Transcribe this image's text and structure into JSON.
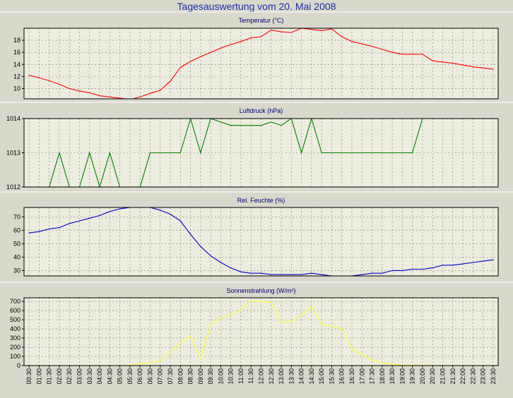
{
  "page_title": "Tagesauswertung vom 20. Mai 2008",
  "x_labels": [
    "00:30",
    "01:00",
    "01:30",
    "02:00",
    "02:30",
    "03:00",
    "03:30",
    "04:00",
    "04:30",
    "05:00",
    "05:30",
    "06:00",
    "06:30",
    "07:00",
    "07:30",
    "08:00",
    "08:30",
    "09:00",
    "09:30",
    "10:00",
    "10:30",
    "11:00",
    "11:30",
    "12:00",
    "12:30",
    "13:00",
    "13:30",
    "14:00",
    "14:30",
    "15:00",
    "15:30",
    "16:00",
    "16:30",
    "17:00",
    "17:30",
    "18:00",
    "18:30",
    "19:00",
    "19:30",
    "20:00",
    "20:30",
    "21:00",
    "21:30",
    "22:00",
    "22:30",
    "23:00",
    "23:30"
  ],
  "colors": {
    "background": "#d8d8cc",
    "plot_bg": "#ececdf",
    "grid": "#808080",
    "temperature": "#ff0000",
    "pressure": "#008000",
    "humidity": "#0000c8",
    "radiation": "#ffff33"
  },
  "chart_data": [
    {
      "type": "line",
      "title": "Temperatur (°C)",
      "ylim": [
        8.3,
        20
      ],
      "yticks": [
        10,
        12,
        14,
        16,
        18
      ],
      "grid": true,
      "series": [
        {
          "values": [
            12.2,
            11.8,
            11.3,
            10.7,
            10.0,
            9.6,
            9.3,
            8.8,
            8.6,
            8.4,
            8.2,
            8.6,
            9.2,
            9.7,
            11.2,
            13.5,
            14.5,
            15.3,
            16.0,
            16.7,
            17.3,
            17.8,
            18.4,
            18.6,
            19.7,
            19.4,
            19.3,
            20.0,
            19.8,
            19.6,
            19.9,
            18.6,
            17.8,
            17.4,
            17.0,
            16.5,
            16.0,
            15.7,
            15.7,
            15.7,
            14.6,
            14.4,
            14.2,
            13.9,
            13.6,
            13.4,
            13.2
          ]
        }
      ]
    },
    {
      "type": "line",
      "title": "Luftdruck (hPa)",
      "ylim": [
        1012,
        1014
      ],
      "yticks": [
        1012,
        1013,
        1014
      ],
      "grid": true,
      "series": [
        {
          "values": [
            1011.5,
            1011.5,
            1012,
            1013,
            1012,
            1012,
            1013,
            1012,
            1013,
            1012,
            1011.8,
            1012,
            1013,
            1013,
            1013,
            1013,
            1014,
            1013,
            1014,
            1013.9,
            1013.8,
            1013.8,
            1013.8,
            1013.8,
            1013.9,
            1013.8,
            1014,
            1013,
            1014,
            1013,
            1013,
            1013,
            1013,
            1013,
            1013,
            1013,
            1013,
            1013,
            1013,
            1014,
            1014.2,
            1014.2,
            1014.2,
            1014.2,
            1014.2,
            1014.2,
            1014.2
          ]
        }
      ]
    },
    {
      "type": "line",
      "title": "Rel. Feuchte (%)",
      "ylim": [
        26,
        77
      ],
      "yticks": [
        30,
        40,
        50,
        60,
        70
      ],
      "grid": true,
      "series": [
        {
          "values": [
            58,
            59,
            61,
            62,
            65,
            67,
            69,
            71,
            74,
            76,
            77,
            78,
            77,
            75,
            72,
            67,
            57,
            48,
            41,
            36,
            32,
            29,
            28,
            28,
            27,
            27,
            27,
            27,
            28,
            27,
            26,
            26,
            26,
            27,
            28,
            28,
            30,
            30,
            31,
            31,
            32,
            34,
            34,
            35,
            36,
            37,
            38
          ]
        }
      ]
    },
    {
      "type": "line",
      "title": "Sonnenstrahlung (W/m²)",
      "ylim": [
        0,
        740
      ],
      "yticks": [
        0,
        100,
        200,
        300,
        400,
        500,
        600,
        700
      ],
      "grid": true,
      "series": [
        {
          "values": [
            0,
            0,
            0,
            0,
            0,
            0,
            0,
            0,
            0,
            0,
            5,
            20,
            30,
            50,
            150,
            250,
            320,
            80,
            450,
            520,
            560,
            610,
            710,
            700,
            690,
            470,
            480,
            550,
            640,
            450,
            430,
            400,
            180,
            120,
            60,
            30,
            10,
            5,
            3,
            2,
            0,
            0,
            0,
            0,
            0,
            0,
            0
          ]
        }
      ]
    }
  ]
}
